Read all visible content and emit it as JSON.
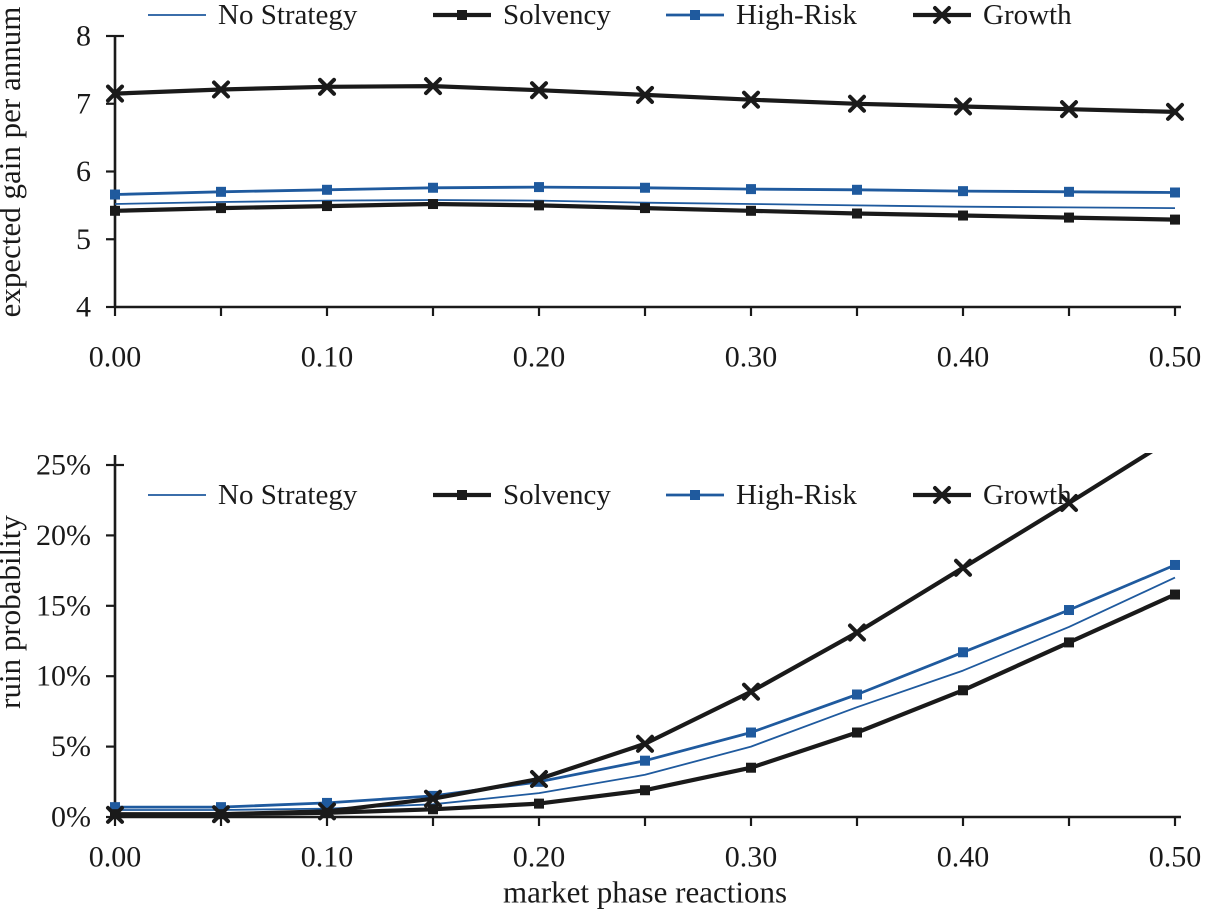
{
  "figure": {
    "background": "#ffffff",
    "text_color": "#1a1a1a",
    "description": "Two stacked line charts comparing investment strategies"
  },
  "colors": {
    "blue": "#1f5a9e",
    "black": "#1a1a1a"
  },
  "chart_data": [
    {
      "type": "line",
      "title": "",
      "xlabel": "",
      "ylabel": "expected gain per annum",
      "xlim": [
        0,
        0.5
      ],
      "ylim": [
        4,
        8
      ],
      "grid": false,
      "legend_position": "top",
      "x": [
        0.0,
        0.05,
        0.1,
        0.15,
        0.2,
        0.25,
        0.3,
        0.35,
        0.4,
        0.45,
        0.5
      ],
      "x_tick_labels": [
        {
          "v": 0.0,
          "label": "0.00"
        },
        {
          "v": 0.1,
          "label": "0.10"
        },
        {
          "v": 0.2,
          "label": "0.20"
        },
        {
          "v": 0.3,
          "label": "0.30"
        },
        {
          "v": 0.4,
          "label": "0.40"
        },
        {
          "v": 0.5,
          "label": "0.50"
        }
      ],
      "y_ticks": [
        {
          "v": 4,
          "label": "4"
        },
        {
          "v": 5,
          "label": "5"
        },
        {
          "v": 6,
          "label": "6"
        },
        {
          "v": 7,
          "label": "7"
        },
        {
          "v": 8,
          "label": "8"
        }
      ],
      "series": [
        {
          "name": "No Strategy",
          "color": "blue",
          "line_width": 1.8,
          "marker": "none",
          "values": [
            5.52,
            5.55,
            5.57,
            5.58,
            5.57,
            5.54,
            5.52,
            5.5,
            5.48,
            5.47,
            5.46
          ]
        },
        {
          "name": "Solvency",
          "color": "black",
          "line_width": 4.2,
          "marker": "square",
          "values": [
            5.42,
            5.46,
            5.49,
            5.52,
            5.5,
            5.46,
            5.42,
            5.38,
            5.35,
            5.32,
            5.29
          ]
        },
        {
          "name": "High-Risk",
          "color": "blue",
          "line_width": 2.8,
          "marker": "square",
          "values": [
            5.66,
            5.7,
            5.73,
            5.76,
            5.77,
            5.76,
            5.74,
            5.73,
            5.71,
            5.7,
            5.69
          ]
        },
        {
          "name": "Growth",
          "color": "black",
          "line_width": 4.2,
          "marker": "x",
          "values": [
            7.15,
            7.21,
            7.25,
            7.26,
            7.2,
            7.13,
            7.06,
            7.0,
            6.96,
            6.92,
            6.88
          ]
        }
      ]
    },
    {
      "type": "line",
      "title": "",
      "xlabel": "market phase reactions",
      "ylabel": "ruin probability",
      "xlim": [
        0,
        0.5
      ],
      "ylim": [
        0,
        25
      ],
      "unit": "%",
      "grid": false,
      "legend_position": "top",
      "x": [
        0.0,
        0.05,
        0.1,
        0.15,
        0.2,
        0.25,
        0.3,
        0.35,
        0.4,
        0.45,
        0.5
      ],
      "x_tick_labels": [
        {
          "v": 0.0,
          "label": "0.00"
        },
        {
          "v": 0.1,
          "label": "0.10"
        },
        {
          "v": 0.2,
          "label": "0.20"
        },
        {
          "v": 0.3,
          "label": "0.30"
        },
        {
          "v": 0.4,
          "label": "0.40"
        },
        {
          "v": 0.5,
          "label": "0.50"
        }
      ],
      "y_ticks": [
        {
          "v": 0,
          "label": "0%"
        },
        {
          "v": 5,
          "label": "5%"
        },
        {
          "v": 10,
          "label": "10%"
        },
        {
          "v": 15,
          "label": "15%"
        },
        {
          "v": 20,
          "label": "20%"
        },
        {
          "v": 25,
          "label": "25%"
        }
      ],
      "series": [
        {
          "name": "No Strategy",
          "color": "blue",
          "line_width": 1.8,
          "marker": "none",
          "values": [
            0.5,
            0.5,
            0.6,
            0.9,
            1.7,
            3.0,
            5.0,
            7.8,
            10.4,
            13.5,
            17.0
          ]
        },
        {
          "name": "Solvency",
          "color": "black",
          "line_width": 4.2,
          "marker": "square",
          "values": [
            0.2,
            0.2,
            0.3,
            0.55,
            0.95,
            1.9,
            3.5,
            6.0,
            9.0,
            12.4,
            15.8
          ]
        },
        {
          "name": "High-Risk",
          "color": "blue",
          "line_width": 2.8,
          "marker": "square",
          "values": [
            0.7,
            0.7,
            1.0,
            1.5,
            2.5,
            4.0,
            6.0,
            8.7,
            11.7,
            14.7,
            17.9
          ]
        },
        {
          "name": "Growth",
          "color": "black",
          "line_width": 4.2,
          "marker": "x",
          "values": [
            0.15,
            0.2,
            0.4,
            1.3,
            2.7,
            5.2,
            8.9,
            13.1,
            17.7,
            22.3,
            27.0
          ]
        }
      ]
    }
  ]
}
